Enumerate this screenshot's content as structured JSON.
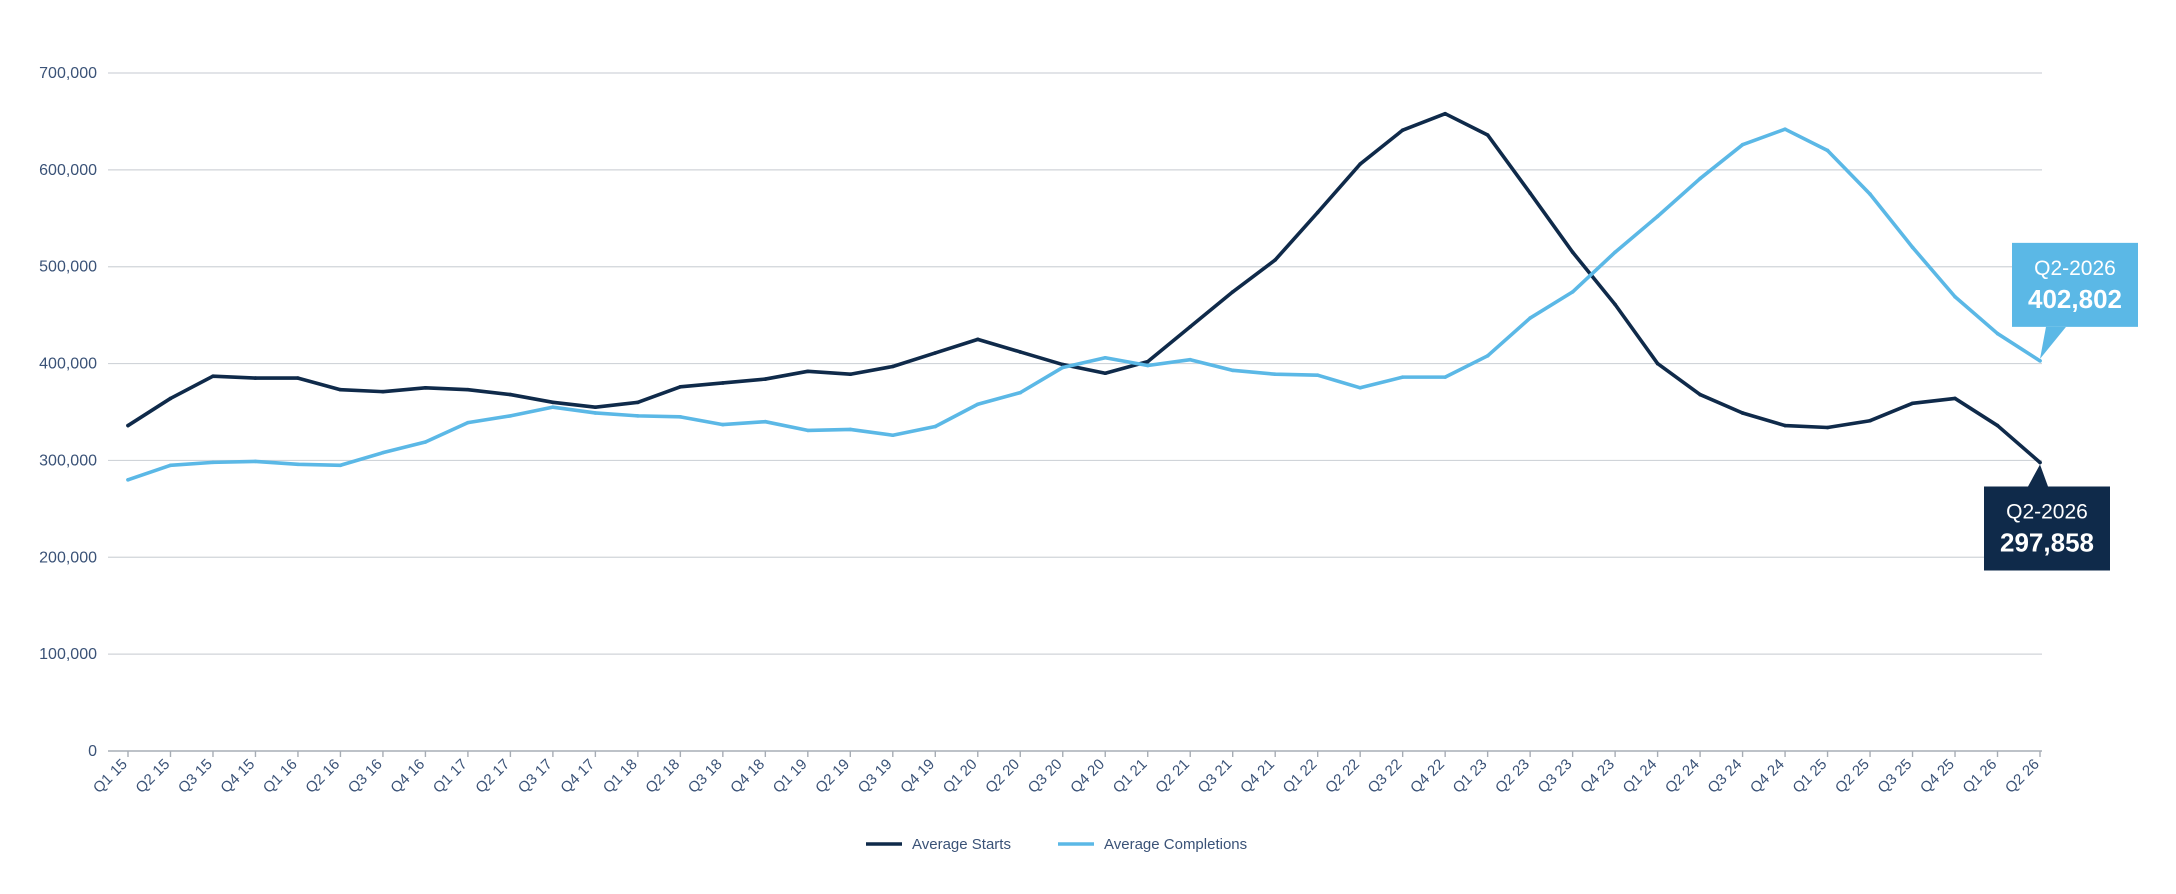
{
  "chart_data": {
    "type": "line",
    "title": "",
    "xlabel": "",
    "ylabel": "",
    "ylim": [
      0,
      700000
    ],
    "y_ticks": [
      "0",
      "100,000",
      "200,000",
      "300,000",
      "400,000",
      "500,000",
      "600,000",
      "700,000"
    ],
    "y_tick_values": [
      0,
      100000,
      200000,
      300000,
      400000,
      500000,
      600000,
      700000
    ],
    "grid": true,
    "legend_position": "bottom-center",
    "categories": [
      "Q1 15",
      "Q2 15",
      "Q3 15",
      "Q4 15",
      "Q1 16",
      "Q2 16",
      "Q3 16",
      "Q4 16",
      "Q1 17",
      "Q2 17",
      "Q3 17",
      "Q4 17",
      "Q1 18",
      "Q2 18",
      "Q3 18",
      "Q4 18",
      "Q1 19",
      "Q2 19",
      "Q3 19",
      "Q4 19",
      "Q1 20",
      "Q2 20",
      "Q3 20",
      "Q4 20",
      "Q1 21",
      "Q2 21",
      "Q3 21",
      "Q4 21",
      "Q1 22",
      "Q2 22",
      "Q3 22",
      "Q4 22",
      "Q1 23",
      "Q2 23",
      "Q3 23",
      "Q4 23",
      "Q1 24",
      "Q2 24",
      "Q3 24",
      "Q4 24",
      "Q1 25",
      "Q2 25",
      "Q3 25",
      "Q4 25",
      "Q1 26",
      "Q2 26"
    ],
    "series": [
      {
        "name": "Average Starts",
        "color": "#0f2a4a",
        "values": [
          336000,
          364000,
          387000,
          385000,
          385000,
          373000,
          371000,
          375000,
          373000,
          368000,
          360000,
          355000,
          360000,
          376000,
          380000,
          384000,
          392000,
          389000,
          397000,
          411000,
          425000,
          412000,
          399000,
          390000,
          402000,
          438000,
          474000,
          507000,
          556000,
          606000,
          641000,
          658000,
          636000,
          576000,
          515000,
          461000,
          400000,
          368000,
          349000,
          336000,
          334000,
          341000,
          359000,
          364000,
          336000,
          297858
        ]
      },
      {
        "name": "Average Completions",
        "color": "#5bb8e6",
        "values": [
          280000,
          295000,
          298000,
          299000,
          296000,
          295000,
          308000,
          319000,
          339000,
          346000,
          355000,
          349000,
          346000,
          345000,
          337000,
          340000,
          331000,
          332000,
          326000,
          335000,
          358000,
          370000,
          396000,
          406000,
          398000,
          404000,
          393000,
          389000,
          388000,
          375000,
          386000,
          386000,
          408000,
          447000,
          474000,
          515000,
          552000,
          591000,
          626000,
          642000,
          620000,
          575000,
          520000,
          469000,
          431000,
          402802
        ]
      }
    ],
    "callouts": [
      {
        "series": "Average Completions",
        "label": "Q2-2026",
        "value_text": "402,802",
        "value": 402802,
        "color": "#5bb8e6"
      },
      {
        "series": "Average Starts",
        "label": "Q2-2026",
        "value_text": "297,858",
        "value": 297858,
        "color": "#0f2a4a"
      }
    ]
  }
}
